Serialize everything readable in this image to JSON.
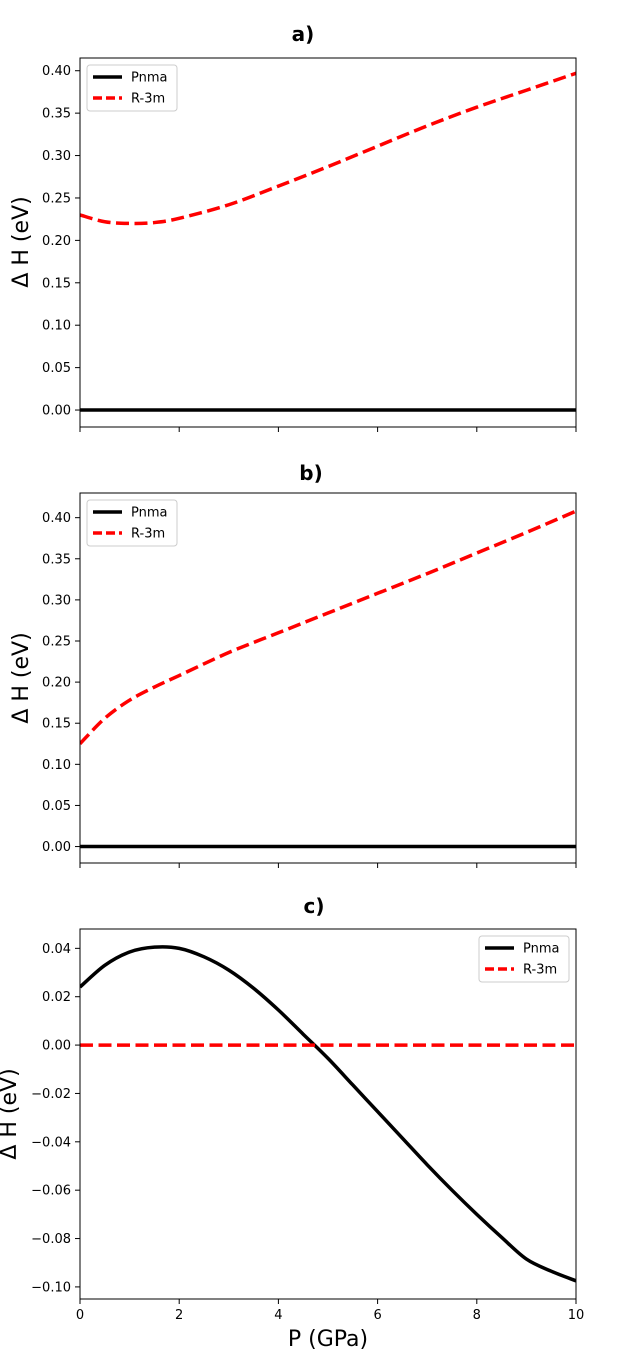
{
  "chart_data": [
    {
      "type": "line",
      "title": "a)",
      "xlabel": "",
      "ylabel": "Δ H (eV)",
      "xlim": [
        0,
        10
      ],
      "ylim": [
        -0.02,
        0.415
      ],
      "yticks": [
        "0.00",
        "0.05",
        "0.10",
        "0.15",
        "0.20",
        "0.25",
        "0.30",
        "0.35",
        "0.40"
      ],
      "xticks": [
        "",
        "",
        "",
        "",
        "",
        ""
      ],
      "legend": "top-left",
      "x": [
        0,
        0.5,
        1,
        1.5,
        2,
        3,
        4,
        5,
        6,
        7,
        8,
        9,
        10
      ],
      "series": [
        {
          "name": "Pnma",
          "color": "#000000",
          "style": "solid",
          "values": [
            0,
            0,
            0,
            0,
            0,
            0,
            0,
            0,
            0,
            0,
            0,
            0,
            0
          ]
        },
        {
          "name": "R-3m",
          "color": "#ff0000",
          "style": "dashed",
          "values": [
            0.23,
            0.222,
            0.22,
            0.221,
            0.226,
            0.242,
            0.264,
            0.287,
            0.311,
            0.335,
            0.357,
            0.377,
            0.397
          ]
        }
      ]
    },
    {
      "type": "line",
      "title": "b)",
      "xlabel": "",
      "ylabel": "Δ H (eV)",
      "xlim": [
        0,
        10
      ],
      "ylim": [
        -0.02,
        0.43
      ],
      "yticks": [
        "0.00",
        "0.05",
        "0.10",
        "0.15",
        "0.20",
        "0.25",
        "0.30",
        "0.35",
        "0.40"
      ],
      "xticks": [
        "",
        "",
        "",
        "",
        "",
        ""
      ],
      "legend": "top-left",
      "x": [
        0,
        0.5,
        1,
        1.5,
        2,
        3,
        4,
        5,
        6,
        7,
        8,
        9,
        10
      ],
      "series": [
        {
          "name": "Pnma",
          "color": "#000000",
          "style": "solid",
          "values": [
            0,
            0,
            0,
            0,
            0,
            0,
            0,
            0,
            0,
            0,
            0,
            0,
            0
          ]
        },
        {
          "name": "R-3m",
          "color": "#ff0000",
          "style": "dashed",
          "values": [
            0.125,
            0.156,
            0.178,
            0.194,
            0.208,
            0.236,
            0.26,
            0.284,
            0.308,
            0.332,
            0.357,
            0.382,
            0.408
          ]
        }
      ]
    },
    {
      "type": "line",
      "title": "c)",
      "xlabel": "P (GPa)",
      "ylabel": "Δ H (eV)",
      "xlim": [
        0,
        10
      ],
      "ylim": [
        -0.105,
        0.048
      ],
      "yticks": [
        "−0.10",
        "−0.08",
        "−0.06",
        "−0.04",
        "−0.02",
        "0.00",
        "0.02",
        "0.04"
      ],
      "xticks": [
        "0",
        "2",
        "4",
        "6",
        "8",
        "10"
      ],
      "legend": "top-right",
      "x": [
        0,
        0.5,
        1,
        1.5,
        2,
        2.5,
        3,
        3.5,
        4,
        4.5,
        5,
        5.5,
        6,
        6.5,
        7,
        7.5,
        8,
        8.5,
        9,
        9.5,
        10
      ],
      "series": [
        {
          "name": "Pnma",
          "color": "#000000",
          "style": "solid",
          "values": [
            0.024,
            0.033,
            0.0385,
            0.0405,
            0.04,
            0.0365,
            0.031,
            0.0235,
            0.0145,
            0.0045,
            -0.0055,
            -0.0165,
            -0.0275,
            -0.0385,
            -0.0495,
            -0.06,
            -0.07,
            -0.0795,
            -0.0885,
            -0.0935,
            -0.0975
          ]
        },
        {
          "name": "R-3m",
          "color": "#ff0000",
          "style": "dashed",
          "values": [
            0,
            0,
            0,
            0,
            0,
            0,
            0,
            0,
            0,
            0,
            0,
            0,
            0,
            0,
            0,
            0,
            0,
            0,
            0,
            0,
            0
          ]
        }
      ]
    }
  ]
}
